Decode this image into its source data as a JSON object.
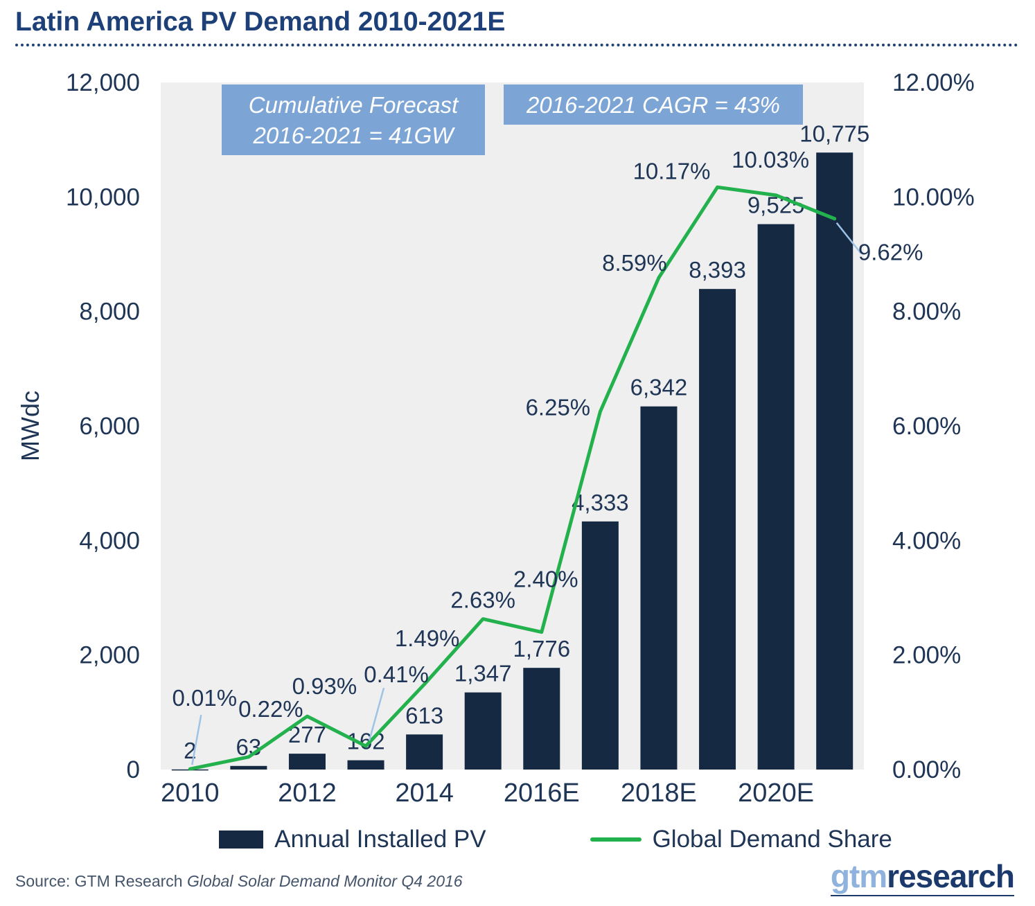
{
  "title": "Latin America PV Demand  2010-2021E",
  "chart_data": {
    "type": "bar",
    "subtype": "combo-bar-line",
    "categories": [
      "2010",
      "2011",
      "2012",
      "2013",
      "2014",
      "2015",
      "2016E",
      "2017E",
      "2018E",
      "2019E",
      "2020E",
      "2021E"
    ],
    "series": [
      {
        "name": "Annual Installed PV",
        "type": "bar",
        "axis": "left",
        "color": "#152A42",
        "values": [
          2,
          63,
          277,
          162,
          613,
          1347,
          1776,
          4333,
          6342,
          8393,
          9525,
          10775
        ],
        "labels": [
          "2",
          "63",
          "277",
          "162",
          "613",
          "1,347",
          "1,776",
          "4,333",
          "6,342",
          "8,393",
          "9,525",
          "10,775"
        ]
      },
      {
        "name": "Global Demand Share",
        "type": "line",
        "axis": "right",
        "color": "#22B14C",
        "values": [
          0.01,
          0.22,
          0.93,
          0.41,
          1.49,
          2.63,
          2.4,
          6.25,
          8.59,
          10.17,
          10.03,
          9.62
        ],
        "labels": [
          "0.01%",
          "0.22%",
          "0.93%",
          "0.41%",
          "1.49%",
          "2.63%",
          "2.40%",
          "6.25%",
          "8.59%",
          "10.17%",
          "10.03%",
          "9.62%"
        ]
      }
    ],
    "left_axis": {
      "label": "MWdc",
      "min": 0,
      "max": 12000,
      "step": 2000,
      "tick_labels": [
        "0",
        "2,000",
        "4,000",
        "6,000",
        "8,000",
        "10,000",
        "12,000"
      ]
    },
    "right_axis": {
      "min": 0,
      "max": 12,
      "step": 2,
      "tick_labels": [
        "0.00%",
        "2.00%",
        "4.00%",
        "6.00%",
        "8.00%",
        "10.00%",
        "12.00%"
      ]
    },
    "x_tick_labels": [
      "2010",
      "2012",
      "2014",
      "2016E",
      "2018E",
      "2020E"
    ],
    "plot_background": "#EFEFEF",
    "callout_line_color": "#9DC3E6",
    "label_color": "#1F3556",
    "annotations": [
      {
        "lines": [
          "Cumulative Forecast",
          "2016-2021 = 41GW"
        ],
        "background": "#7CA5D6",
        "text_color": "#FFFFFF"
      },
      {
        "lines": [
          "2016-2021 CAGR = 43%"
        ],
        "background": "#7CA5D6",
        "text_color": "#FFFFFF"
      }
    ],
    "legend_position": "bottom",
    "grid": false
  },
  "legend": {
    "items": [
      {
        "label": "Annual Installed PV",
        "swatch": "bar"
      },
      {
        "label": "Global Demand Share",
        "swatch": "line"
      }
    ]
  },
  "source": {
    "prefix": "Source: GTM Research ",
    "italic": "Global Solar Demand Monitor Q4 2016"
  },
  "logo": {
    "text_light": "gtm",
    "text_dark": "research",
    "light_color": "#8FB3DC",
    "dark_color": "#1B3A6B"
  },
  "colors": {
    "title": "#1C4077",
    "axis_text": "#1F3556",
    "bar": "#152A42",
    "line": "#22B14C"
  }
}
